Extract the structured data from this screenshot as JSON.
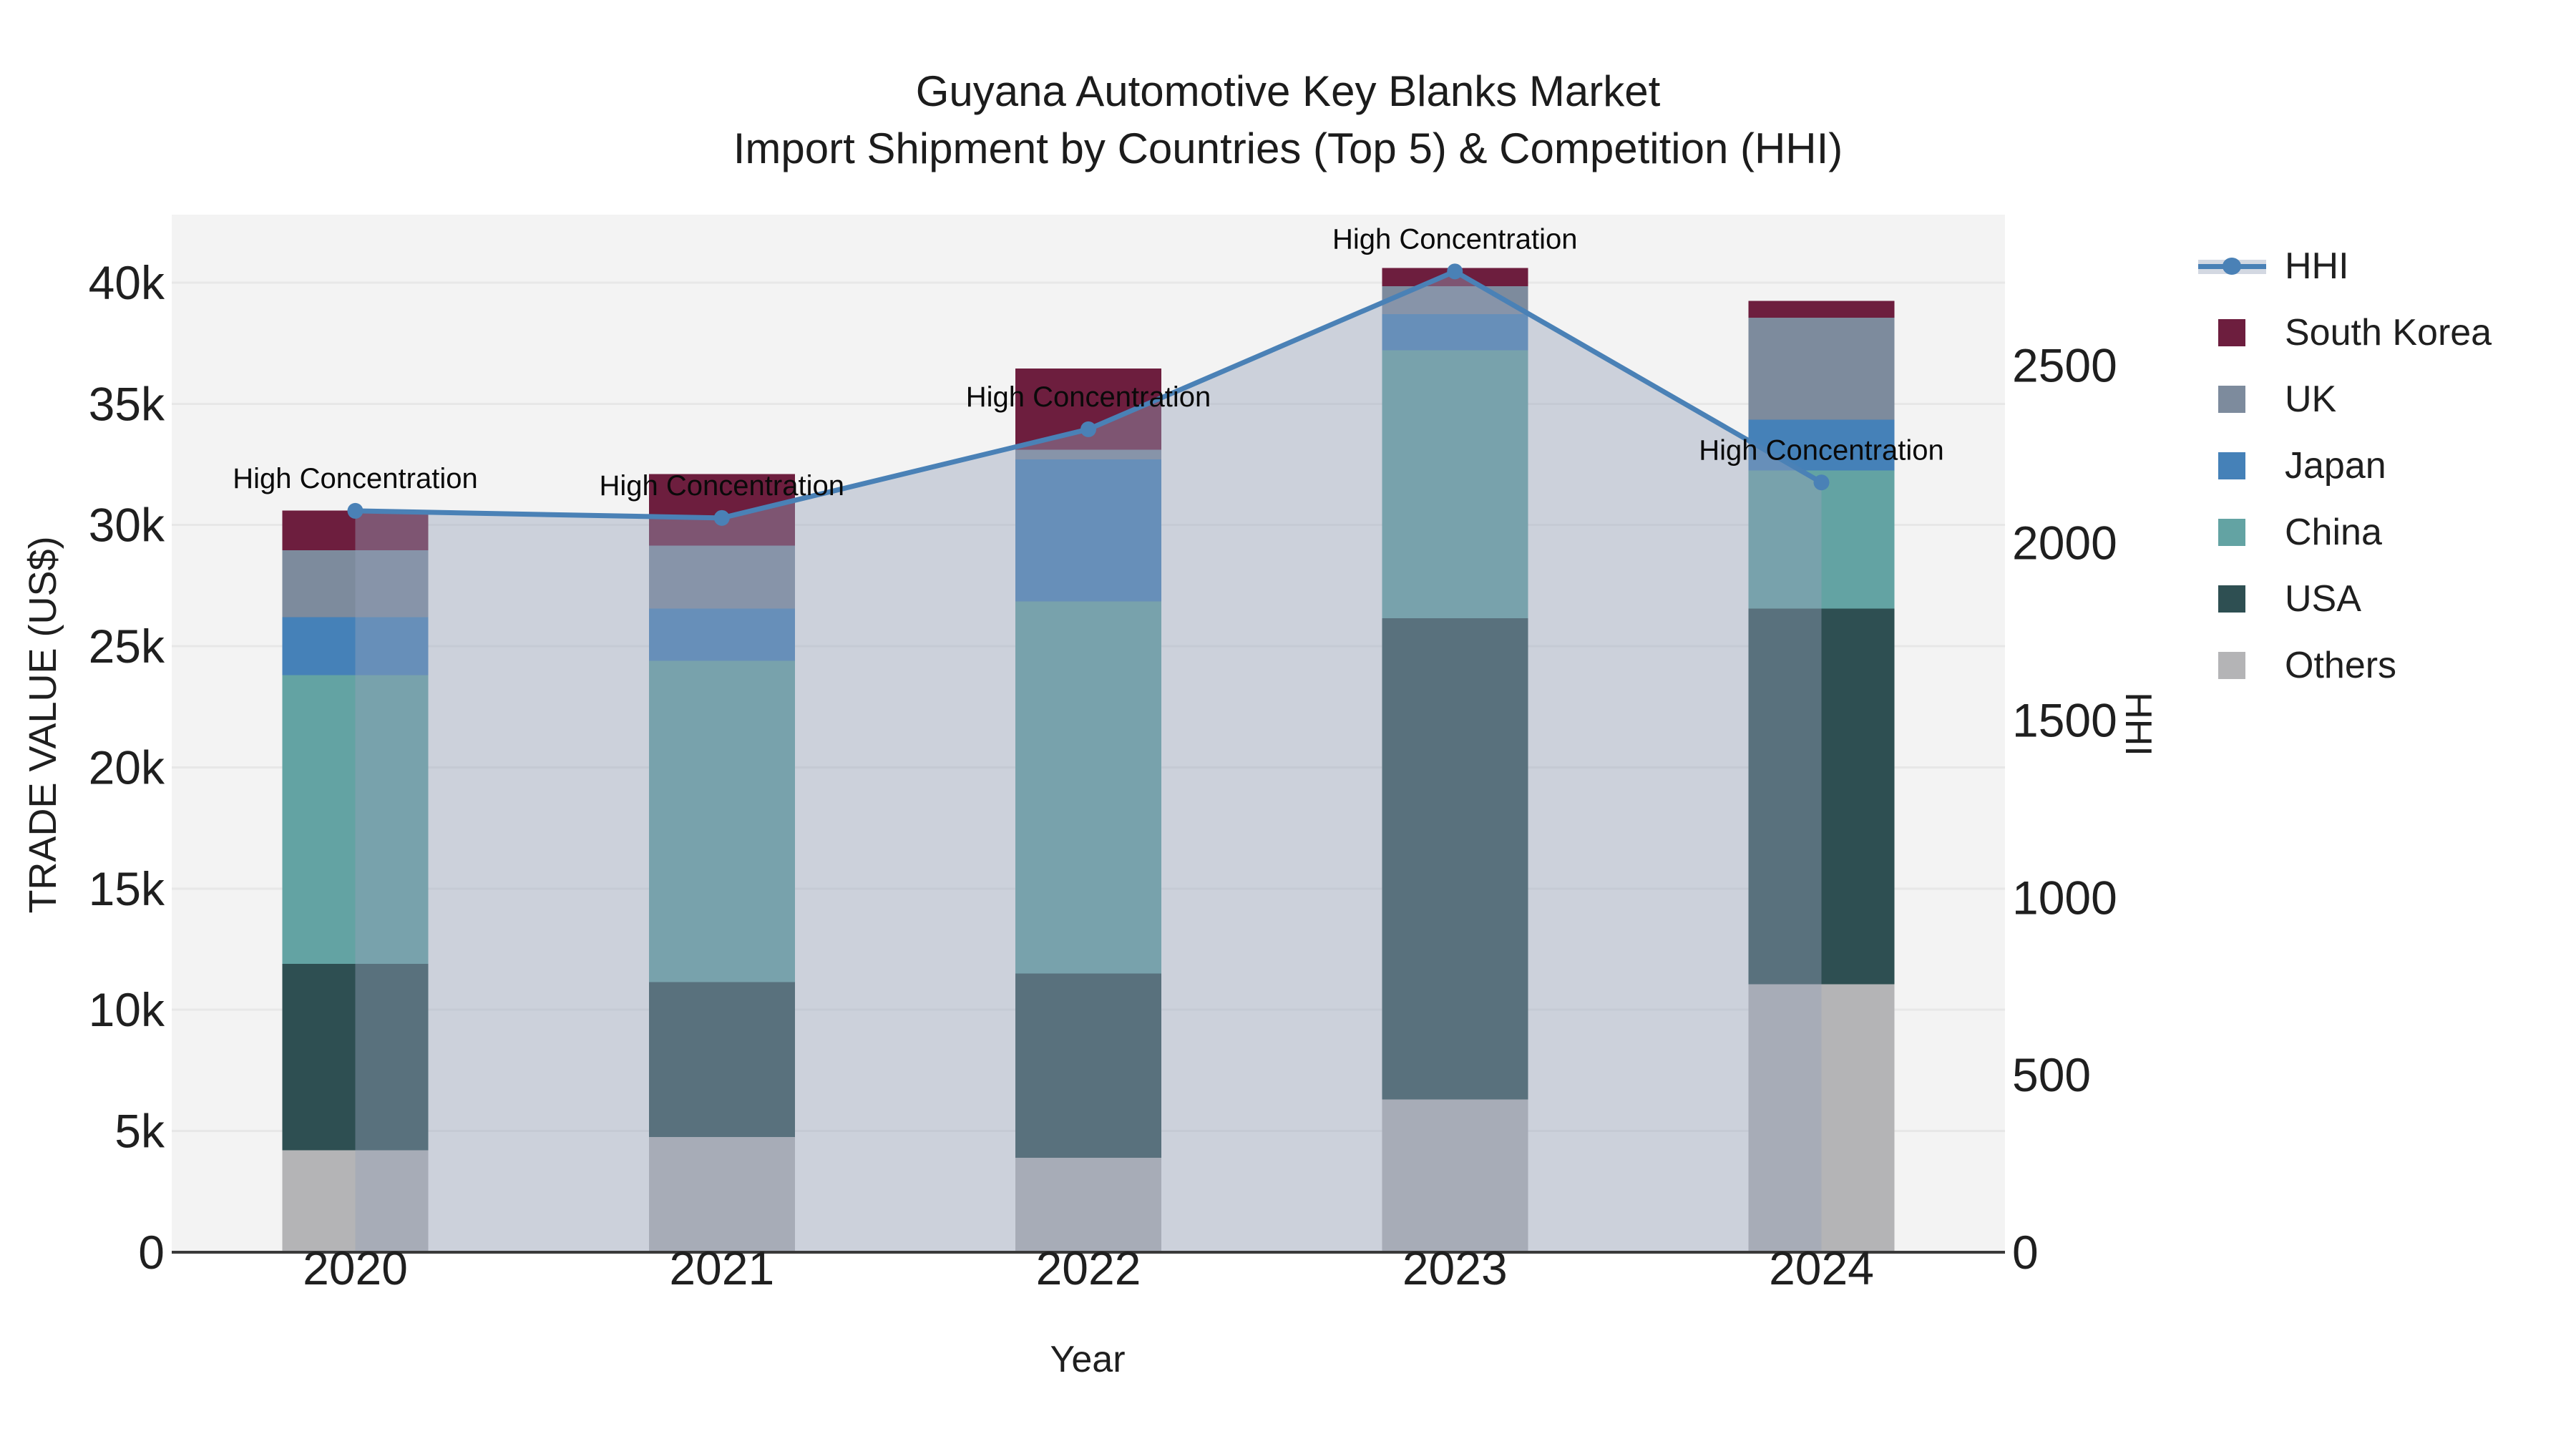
{
  "title": {
    "line1": "Guyana Automotive Key Blanks Market",
    "line2": "Import Shipment by Countries (Top 5) & Competition (HHI)"
  },
  "chart_data": {
    "type": "bar",
    "subtype": "stacked-bars-with-line",
    "categories": [
      "2020",
      "2021",
      "2022",
      "2023",
      "2024"
    ],
    "series": [
      {
        "name": "Others",
        "color": "#b4b4b6",
        "values": [
          4200,
          4750,
          3900,
          6300,
          11050
        ]
      },
      {
        "name": "USA",
        "color": "#2e4f52",
        "values": [
          7700,
          6400,
          7600,
          19850,
          15500
        ]
      },
      {
        "name": "China",
        "color": "#63a3a3",
        "values": [
          11900,
          13250,
          15350,
          11050,
          5700
        ]
      },
      {
        "name": "Japan",
        "color": "#4581b8",
        "values": [
          2400,
          2150,
          5850,
          1500,
          2100
        ]
      },
      {
        "name": "UK",
        "color": "#7d8b9d",
        "values": [
          2750,
          2600,
          400,
          1150,
          4200
        ]
      },
      {
        "name": "South Korea",
        "color": "#6d1e3e",
        "values": [
          1650,
          2950,
          3350,
          750,
          700
        ]
      }
    ],
    "line_series": {
      "name": "HHI",
      "color": "#4a81b6",
      "area_fill": "rgba(150,163,186,0.42)",
      "values": [
        2090,
        2070,
        2320,
        2765,
        2170
      ]
    },
    "annotations": [
      "High Concentration",
      "High Concentration",
      "High Concentration",
      "High Concentration",
      "High Concentration"
    ],
    "y_axis": {
      "label": "TRADE VALUE (US$)",
      "tick_labels": [
        "0",
        "5k",
        "10k",
        "15k",
        "20k",
        "25k",
        "30k",
        "35k",
        "40k"
      ],
      "tick_values": [
        0,
        5000,
        10000,
        15000,
        20000,
        25000,
        30000,
        35000,
        40000
      ],
      "ylim": [
        0,
        42800
      ]
    },
    "y2_axis": {
      "label": "HHI",
      "tick_labels": [
        "0",
        "500",
        "1000",
        "1500",
        "2000",
        "2500"
      ],
      "tick_values": [
        0,
        500,
        1000,
        1500,
        2000,
        2500
      ],
      "ylim": [
        0,
        2925
      ]
    },
    "x_axis": {
      "label": "Year"
    },
    "style": {
      "plot_bg": "#f3f3f3",
      "grid_color": "#e7e7e7",
      "axis_color": "#3a3a3a",
      "text_color": "#1f1f1f",
      "annotation_color": "#0a0a0a"
    },
    "legend_position": "right"
  },
  "legend": {
    "items": [
      {
        "label": "HHI",
        "kind": "line",
        "color": "#4a81b6"
      },
      {
        "label": "South Korea",
        "kind": "patch",
        "color": "#6d1e3e"
      },
      {
        "label": "UK",
        "kind": "patch",
        "color": "#7d8b9d"
      },
      {
        "label": "Japan",
        "kind": "patch",
        "color": "#4581b8"
      },
      {
        "label": "China",
        "kind": "patch",
        "color": "#63a3a3"
      },
      {
        "label": "USA",
        "kind": "patch",
        "color": "#2e4f52"
      },
      {
        "label": "Others",
        "kind": "patch",
        "color": "#b4b4b6"
      }
    ]
  }
}
